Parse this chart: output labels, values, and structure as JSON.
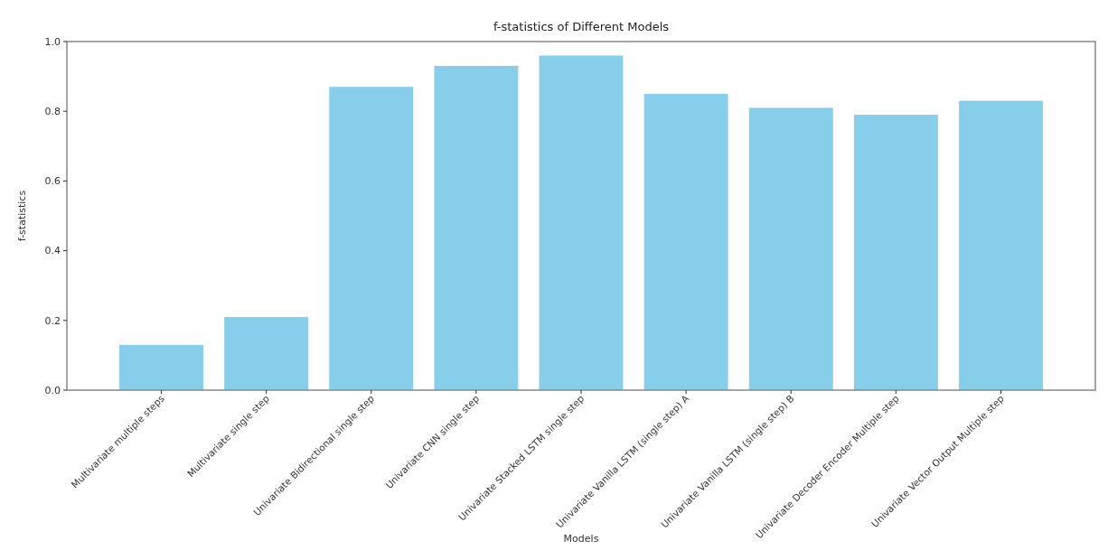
{
  "chart_data": {
    "type": "bar",
    "title": "f-statistics of Different Models",
    "xlabel": "Models",
    "ylabel": "f-statistics",
    "categories": [
      "Multivariate multiple steps",
      "Multivariate single step",
      "Univariate Bidirectional single step",
      "Univariate CNN single step",
      "Univariate Stacked LSTM single step",
      "Univariate Vanilla LSTM (single step) A",
      "Univariate Vanilla LSTM (single step) B",
      "Univariate Decoder Encoder Multiple step",
      "Univariate Vector Output Multiple step"
    ],
    "values": [
      0.13,
      0.21,
      0.87,
      0.93,
      0.96,
      0.85,
      0.81,
      0.79,
      0.83
    ],
    "color": "#87ceeb",
    "ylim": [
      0,
      1.0
    ],
    "yticks": [
      {
        "value": 0,
        "label": "0.0"
      },
      {
        "value": 0.2,
        "label": "0.2"
      },
      {
        "value": 0.4,
        "label": "0.4"
      },
      {
        "value": 0.6,
        "label": "0.6"
      },
      {
        "value": 0.8,
        "label": "0.8"
      },
      {
        "value": 1.0,
        "label": "1.0"
      }
    ],
    "grid": false
  }
}
